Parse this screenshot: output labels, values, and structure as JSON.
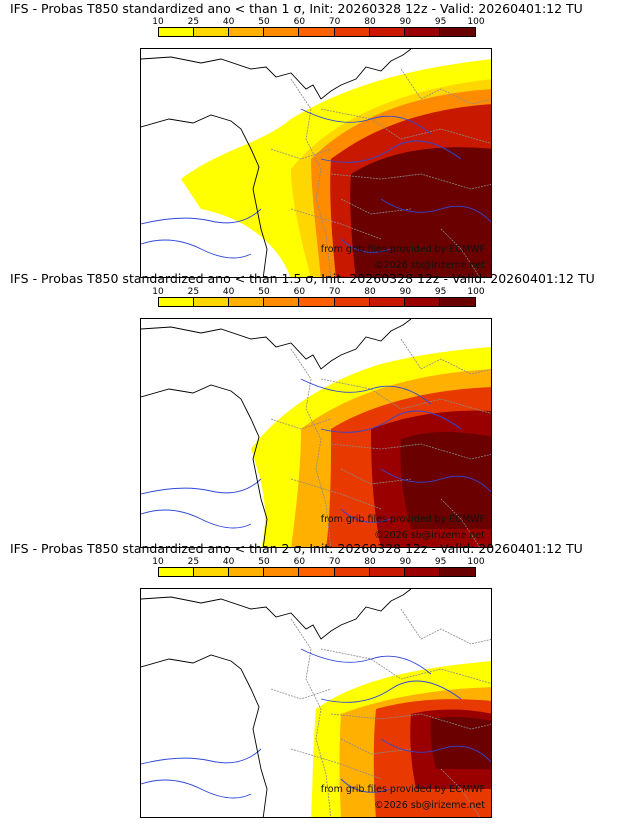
{
  "panels": [
    {
      "title": "IFS - Probas T850  standardized ano < than 1 σ, Init: 20260328 12z - Valid: 20260401:12 TU",
      "intensity": "1"
    },
    {
      "title": "IFS - Probas T850  standardized ano < than 1.5 σ, Init: 20260328 12z - Valid: 20260401:12 TU",
      "intensity": "1.5"
    },
    {
      "title": "IFS - Probas T850  standardized ano < than 2 σ, Init: 20260328 12z - Valid: 20260401:12 TU",
      "intensity": "2"
    }
  ],
  "colorbar": {
    "ticks": [
      "10",
      "25",
      "40",
      "50",
      "60",
      "70",
      "80",
      "90",
      "95",
      "100"
    ],
    "colors": [
      "#ffff00",
      "#ffd700",
      "#ffb000",
      "#ff8c00",
      "#ff6000",
      "#e83a00",
      "#c81800",
      "#9a0000",
      "#6a0000"
    ]
  },
  "credits": {
    "source": "from grib files provided by ECMWF",
    "copyright": "©2026 sb@irizeme.net"
  }
}
